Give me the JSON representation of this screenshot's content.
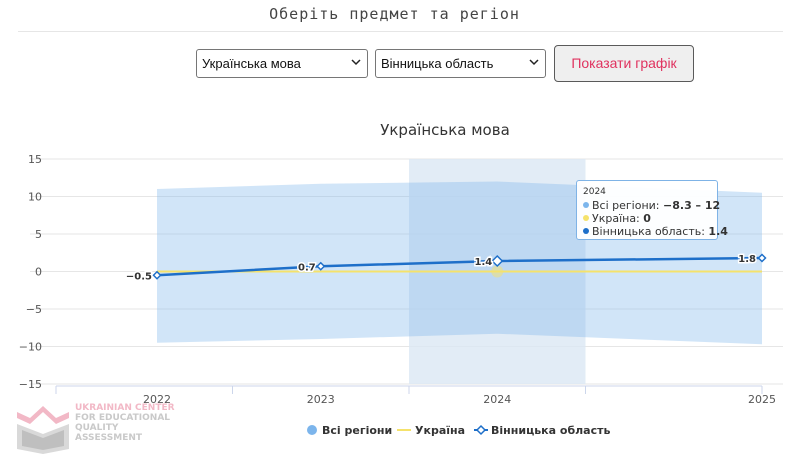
{
  "header": {
    "title": "Оберіть предмет та регіон"
  },
  "controls": {
    "subject_select": {
      "value": "Українська мова"
    },
    "region_select": {
      "value": "Вінницька область"
    },
    "show_button": "Показати графік"
  },
  "logo": {
    "lines": [
      "UKRAINIAN CENTER",
      "FOR EDUCATIONAL",
      "QUALITY",
      "ASSESSMENT"
    ]
  },
  "colors": {
    "range": "#7cb5ec",
    "ukraine": "#f5e26b",
    "region": "#1e6fc9",
    "highlight": "#dbe7f4"
  },
  "tooltip": {
    "year": "2024",
    "rows": [
      {
        "label": "Всі регіони: ",
        "value": "−8.3 – 12",
        "color": "#7cb5ec"
      },
      {
        "label": "Україна: ",
        "value": "0",
        "color": "#f5e26b"
      },
      {
        "label": "Вінницька область: ",
        "value": "1.4",
        "color": "#1e6fc9"
      }
    ]
  },
  "chart_data": {
    "type": "line",
    "title": "Українська мова",
    "categories": [
      "2022",
      "2023",
      "2024",
      "2025"
    ],
    "ylim": [
      -15,
      15
    ],
    "yticks": [
      15,
      10,
      5,
      0,
      -5,
      -10,
      -15
    ],
    "ytick_labels": [
      "15",
      "10",
      "5",
      "0",
      "−5",
      "−10",
      "−15"
    ],
    "grid": true,
    "highlighted_category": "2024",
    "legend_position": "bottom",
    "series": [
      {
        "name": "Всі регіони",
        "type": "arearange",
        "low": [
          -9.5,
          -9,
          -8.3,
          -9.7
        ],
        "high": [
          11,
          11.7,
          12,
          10.5
        ]
      },
      {
        "name": "Україна",
        "type": "line",
        "values": [
          0,
          0,
          0,
          0
        ]
      },
      {
        "name": "Вінницька область",
        "type": "line",
        "values": [
          -0.5,
          0.7,
          1.4,
          1.8
        ],
        "labels": [
          "−0.5",
          "0.7",
          "1.4",
          "1.8"
        ]
      }
    ]
  }
}
